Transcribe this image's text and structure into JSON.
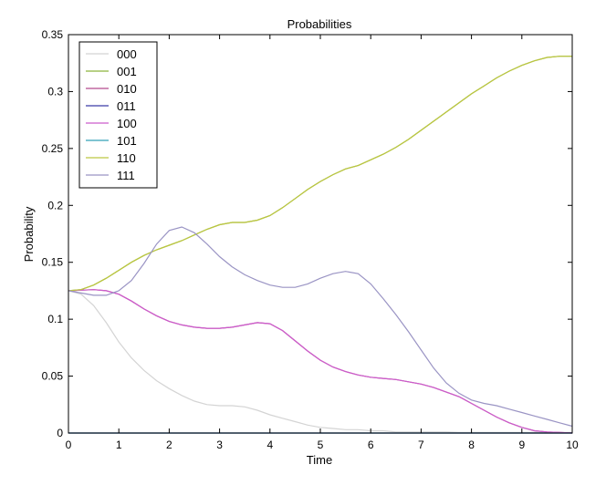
{
  "chart_data": {
    "type": "line",
    "title": "Probabilities",
    "xlabel": "Time",
    "ylabel": "Probability",
    "xlim": [
      0,
      10
    ],
    "ylim": [
      0,
      0.35
    ],
    "xticks": [
      0,
      1,
      2,
      3,
      4,
      5,
      6,
      7,
      8,
      9,
      10
    ],
    "yticks": [
      0,
      0.05,
      0.1,
      0.15,
      0.2,
      0.25,
      0.3,
      0.35
    ],
    "ytick_labels": [
      "0",
      "0.05",
      "0.1",
      "0.15",
      "0.2",
      "0.25",
      "0.3",
      "0.35"
    ],
    "grid": false,
    "legend_position": "top-left",
    "x": [
      0,
      0.25,
      0.5,
      0.75,
      1,
      1.25,
      1.5,
      1.75,
      2,
      2.25,
      2.5,
      2.75,
      3,
      3.25,
      3.5,
      3.75,
      4,
      4.25,
      4.5,
      4.75,
      5,
      5.25,
      5.5,
      5.75,
      6,
      6.25,
      6.5,
      6.75,
      7,
      7.25,
      7.5,
      7.75,
      8,
      8.25,
      8.5,
      8.75,
      9,
      9.25,
      9.5,
      9.75,
      10
    ],
    "series": [
      {
        "name": "000",
        "color": "#d4d4d4",
        "values": [
          0.125,
          0.122,
          0.112,
          0.097,
          0.08,
          0.066,
          0.055,
          0.046,
          0.039,
          0.033,
          0.028,
          0.025,
          0.024,
          0.024,
          0.023,
          0.02,
          0.016,
          0.013,
          0.01,
          0.007,
          0.005,
          0.004,
          0.003,
          0.003,
          0.002,
          0.002,
          0.001,
          0.001,
          0.001,
          0.001,
          0.001,
          0.0005,
          0.0005,
          0.0005,
          0.0005,
          0.0005,
          0.0005,
          0.0005,
          0.0005,
          0.0005,
          0.0005
        ]
      },
      {
        "name": "001",
        "color": "#8cb33c",
        "values": [
          0.125,
          0.126,
          0.13,
          0.136,
          0.143,
          0.15,
          0.156,
          0.161,
          0.165,
          0.169,
          0.174,
          0.179,
          0.183,
          0.185,
          0.185,
          0.187,
          0.191,
          0.198,
          0.206,
          0.214,
          0.221,
          0.227,
          0.232,
          0.235,
          0.24,
          0.245,
          0.251,
          0.258,
          0.266,
          0.274,
          0.282,
          0.29,
          0.298,
          0.305,
          0.312,
          0.318,
          0.323,
          0.327,
          0.33,
          0.331,
          0.331
        ]
      },
      {
        "name": "010",
        "color": "#b44a8e",
        "values": [
          0.125,
          0.1255,
          0.126,
          0.125,
          0.122,
          0.116,
          0.109,
          0.103,
          0.098,
          0.095,
          0.093,
          0.092,
          0.092,
          0.093,
          0.095,
          0.097,
          0.096,
          0.09,
          0.081,
          0.072,
          0.064,
          0.058,
          0.054,
          0.051,
          0.049,
          0.048,
          0.047,
          0.045,
          0.043,
          0.04,
          0.036,
          0.032,
          0.026,
          0.02,
          0.014,
          0.009,
          0.005,
          0.002,
          0.001,
          0.0005,
          0
        ]
      },
      {
        "name": "011",
        "color": "#3a3aa8",
        "values": [
          0,
          0,
          0,
          0,
          0,
          0,
          0,
          0,
          0,
          0,
          0,
          0,
          0,
          0,
          0,
          0,
          0,
          0,
          0,
          0,
          0,
          0,
          0,
          0,
          0,
          0,
          0,
          0,
          0,
          0,
          0,
          0,
          0,
          0,
          0,
          0,
          0,
          0,
          0,
          0,
          0
        ]
      },
      {
        "name": "100",
        "color": "#cc5ccc",
        "values": [
          0.125,
          0.1255,
          0.126,
          0.125,
          0.122,
          0.116,
          0.109,
          0.103,
          0.098,
          0.095,
          0.093,
          0.092,
          0.092,
          0.093,
          0.095,
          0.097,
          0.096,
          0.09,
          0.081,
          0.072,
          0.064,
          0.058,
          0.054,
          0.051,
          0.049,
          0.048,
          0.047,
          0.045,
          0.043,
          0.04,
          0.036,
          0.032,
          0.026,
          0.02,
          0.014,
          0.009,
          0.005,
          0.002,
          0.001,
          0.0005,
          0
        ]
      },
      {
        "name": "101",
        "color": "#33a0b8",
        "values": [
          0,
          0,
          0,
          0,
          0,
          0,
          0,
          0,
          0,
          0,
          0,
          0,
          0,
          0,
          0,
          0,
          0,
          0,
          0,
          0,
          0,
          0,
          0,
          0,
          0,
          0,
          0,
          0,
          0,
          0,
          0,
          0,
          0,
          0,
          0,
          0,
          0,
          0,
          0,
          0,
          0
        ]
      },
      {
        "name": "110",
        "color": "#bcc640",
        "values": [
          0.125,
          0.126,
          0.13,
          0.136,
          0.143,
          0.15,
          0.156,
          0.161,
          0.165,
          0.169,
          0.174,
          0.179,
          0.183,
          0.185,
          0.185,
          0.187,
          0.191,
          0.198,
          0.206,
          0.214,
          0.221,
          0.227,
          0.232,
          0.235,
          0.24,
          0.245,
          0.251,
          0.258,
          0.266,
          0.274,
          0.282,
          0.29,
          0.298,
          0.305,
          0.312,
          0.318,
          0.323,
          0.327,
          0.33,
          0.331,
          0.331
        ]
      },
      {
        "name": "111",
        "color": "#9a94c4",
        "values": [
          0.125,
          0.123,
          0.121,
          0.121,
          0.125,
          0.134,
          0.149,
          0.166,
          0.178,
          0.181,
          0.176,
          0.166,
          0.155,
          0.146,
          0.139,
          0.134,
          0.13,
          0.128,
          0.128,
          0.131,
          0.136,
          0.14,
          0.142,
          0.14,
          0.131,
          0.118,
          0.104,
          0.089,
          0.073,
          0.057,
          0.044,
          0.035,
          0.029,
          0.026,
          0.024,
          0.021,
          0.018,
          0.015,
          0.012,
          0.009,
          0.006
        ]
      }
    ]
  }
}
